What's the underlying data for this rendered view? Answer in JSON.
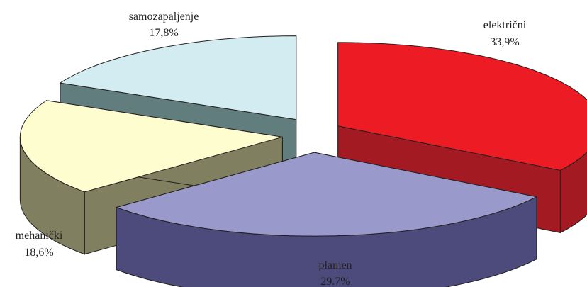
{
  "chart_data": {
    "type": "pie",
    "title": "",
    "categories": [
      "električni",
      "plamen",
      "mehanički",
      "samozapaljenje"
    ],
    "values": [
      33.9,
      29.7,
      18.6,
      17.8
    ],
    "value_labels": [
      "33,9%",
      "29.7%",
      "18,6%",
      "17,8%"
    ],
    "style": "3d-exploded",
    "legend": "none",
    "colors": {
      "top": [
        "#ed1c24",
        "#9999cc",
        "#fdfdcf",
        "#d2ecf1"
      ],
      "side": [
        "#a31a22",
        "#4c4b7c",
        "#807f5f",
        "#627d7d"
      ]
    }
  }
}
